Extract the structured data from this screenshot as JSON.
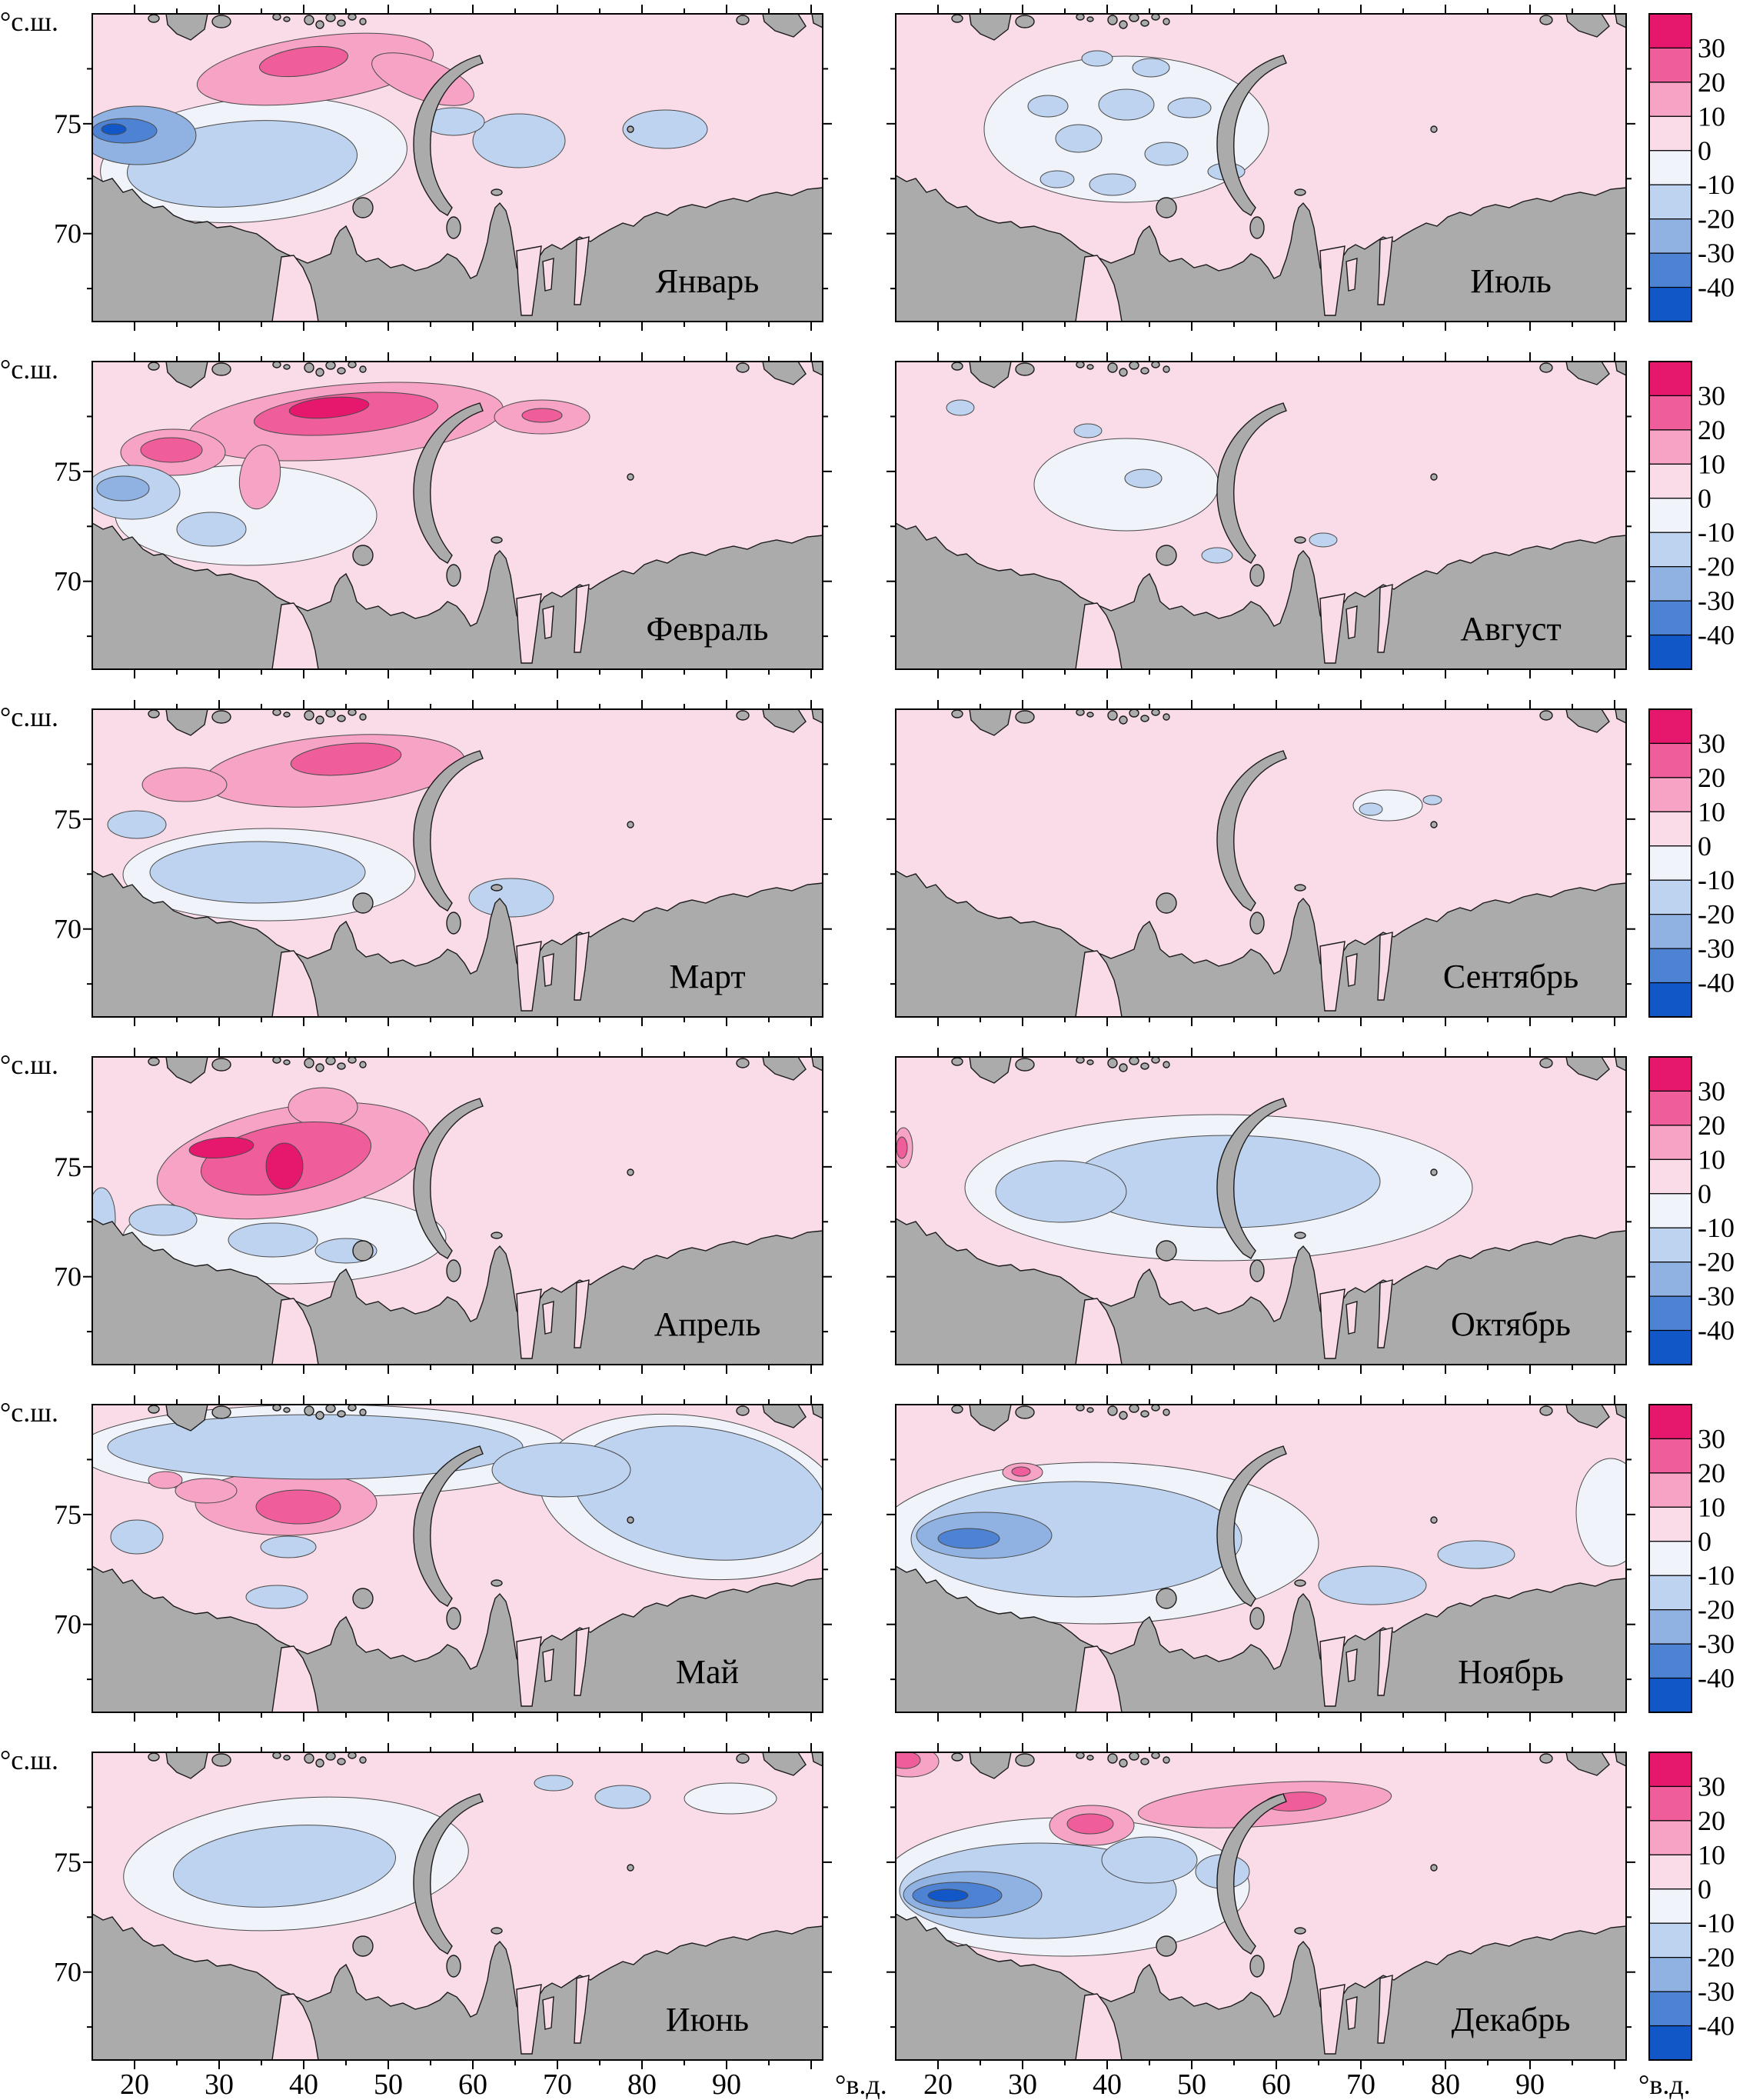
{
  "figure": {
    "lat_axis_label": "°с.ш.",
    "lon_axis_label": "°в.д.",
    "lat_tick_labels": [
      "75",
      "70"
    ],
    "lon_tick_labels": [
      "20",
      "30",
      "40",
      "50",
      "60",
      "70",
      "80",
      "90"
    ],
    "land_color": "#ababab",
    "coast_color": "#1a1a1a",
    "contour_line_color": "#4a4a4a"
  },
  "colorbar": {
    "labels": [
      "30",
      "20",
      "10",
      "0",
      "-10",
      "-20",
      "-30",
      "-40"
    ],
    "colors": [
      "#E5186E",
      "#EF5E9B",
      "#F6A3C6",
      "#FADCE8",
      "#F0F3FA",
      "#BED3EF",
      "#8FB2E2",
      "#4E82D3",
      "#1257C8"
    ]
  },
  "panels": [
    {
      "month": "Январь",
      "patches": [
        [
          210,
          190,
          200,
          80,
          -5,
          -1
        ],
        [
          195,
          195,
          150,
          55,
          -5,
          -2
        ],
        [
          555,
          165,
          60,
          35,
          0,
          -2
        ],
        [
          745,
          150,
          55,
          25,
          0,
          -2
        ],
        [
          470,
          140,
          40,
          18,
          0,
          -2
        ],
        [
          60,
          158,
          75,
          38,
          0,
          -3
        ],
        [
          42,
          152,
          42,
          16,
          0,
          -4
        ],
        [
          28,
          150,
          16,
          7,
          0,
          -5
        ],
        [
          290,
          72,
          155,
          42,
          -8,
          1
        ],
        [
          430,
          85,
          70,
          26,
          20,
          1
        ],
        [
          275,
          62,
          58,
          18,
          -8,
          2
        ]
      ]
    },
    {
      "month": "Февраль",
      "patches": [
        [
          200,
          200,
          170,
          65,
          0,
          -1
        ],
        [
          52,
          170,
          62,
          35,
          0,
          -2
        ],
        [
          155,
          218,
          45,
          22,
          0,
          -2
        ],
        [
          40,
          165,
          34,
          16,
          0,
          -3
        ],
        [
          330,
          78,
          205,
          48,
          -5,
          1
        ],
        [
          105,
          118,
          68,
          30,
          0,
          1
        ],
        [
          585,
          72,
          62,
          22,
          0,
          1
        ],
        [
          218,
          150,
          26,
          42,
          10,
          1
        ],
        [
          330,
          68,
          120,
          26,
          -5,
          2
        ],
        [
          103,
          115,
          40,
          16,
          0,
          2
        ],
        [
          585,
          70,
          26,
          9,
          0,
          2
        ],
        [
          308,
          60,
          52,
          13,
          -5,
          3
        ]
      ]
    },
    {
      "month": "Март",
      "patches": [
        [
          230,
          215,
          190,
          60,
          0,
          -1
        ],
        [
          215,
          212,
          140,
          40,
          0,
          -2
        ],
        [
          545,
          245,
          55,
          25,
          0,
          -2
        ],
        [
          58,
          150,
          38,
          18,
          0,
          -2
        ],
        [
          315,
          80,
          170,
          45,
          -5,
          1
        ],
        [
          120,
          98,
          55,
          22,
          0,
          1
        ],
        [
          330,
          65,
          72,
          20,
          -5,
          2
        ]
      ]
    },
    {
      "month": "Апрель",
      "patches": [
        [
          250,
          235,
          210,
          60,
          0,
          -1
        ],
        [
          235,
          238,
          58,
          22,
          0,
          -2
        ],
        [
          92,
          212,
          44,
          20,
          0,
          -2
        ],
        [
          330,
          252,
          40,
          16,
          0,
          -2
        ],
        [
          12,
          210,
          18,
          40,
          0,
          -2
        ],
        [
          262,
          135,
          180,
          70,
          -10,
          1
        ],
        [
          300,
          65,
          45,
          25,
          0,
          1
        ],
        [
          252,
          132,
          112,
          44,
          -10,
          2
        ],
        [
          168,
          118,
          42,
          13,
          -5,
          3
        ],
        [
          250,
          142,
          24,
          30,
          0,
          3
        ]
      ]
    },
    {
      "month": "Май",
      "patches": [
        [
          300,
          60,
          320,
          60,
          0,
          -1
        ],
        [
          780,
          120,
          200,
          105,
          8,
          -1
        ],
        [
          290,
          55,
          270,
          42,
          0,
          -2
        ],
        [
          790,
          115,
          165,
          85,
          8,
          -2
        ],
        [
          610,
          85,
          90,
          35,
          0,
          -2
        ],
        [
          255,
          185,
          36,
          14,
          0,
          -2
        ],
        [
          58,
          172,
          34,
          22,
          0,
          -2
        ],
        [
          240,
          250,
          40,
          15,
          0,
          -2
        ],
        [
          252,
          128,
          118,
          42,
          0,
          1
        ],
        [
          148,
          112,
          40,
          16,
          0,
          1
        ],
        [
          95,
          98,
          22,
          11,
          0,
          1
        ],
        [
          268,
          133,
          55,
          22,
          0,
          2
        ]
      ]
    },
    {
      "month": "Июнь",
      "patches": [
        [
          265,
          145,
          225,
          85,
          -5,
          -1
        ],
        [
          830,
          60,
          60,
          20,
          0,
          -1
        ],
        [
          250,
          148,
          145,
          52,
          -5,
          -2
        ],
        [
          690,
          58,
          36,
          15,
          0,
          -2
        ],
        [
          600,
          40,
          25,
          10,
          0,
          -2
        ]
      ]
    },
    {
      "month": "Июль",
      "patches": [
        [
          300,
          150,
          185,
          95,
          0,
          -1
        ],
        [
          300,
          118,
          36,
          20,
          0,
          -2
        ],
        [
          238,
          162,
          30,
          18,
          0,
          -2
        ],
        [
          352,
          182,
          28,
          15,
          0,
          -2
        ],
        [
          282,
          222,
          30,
          14,
          0,
          -2
        ],
        [
          198,
          120,
          26,
          14,
          0,
          -2
        ],
        [
          382,
          122,
          28,
          13,
          0,
          -2
        ],
        [
          332,
          70,
          24,
          12,
          0,
          -2
        ],
        [
          262,
          58,
          20,
          10,
          0,
          -2
        ],
        [
          430,
          205,
          24,
          11,
          0,
          -2
        ],
        [
          210,
          215,
          22,
          11,
          0,
          -2
        ]
      ]
    },
    {
      "month": "Август",
      "patches": [
        [
          300,
          160,
          120,
          60,
          0,
          -1
        ],
        [
          84,
          60,
          18,
          10,
          0,
          -2
        ],
        [
          322,
          152,
          24,
          12,
          0,
          -2
        ],
        [
          418,
          252,
          20,
          10,
          0,
          -2
        ],
        [
          556,
          232,
          18,
          9,
          0,
          -2
        ],
        [
          250,
          90,
          18,
          9,
          0,
          -2
        ]
      ]
    },
    {
      "month": "Сентябрь",
      "patches": [
        [
          640,
          125,
          45,
          20,
          0,
          -1
        ],
        [
          618,
          130,
          15,
          8,
          0,
          -2
        ],
        [
          698,
          118,
          12,
          6,
          0,
          -2
        ]
      ]
    },
    {
      "month": "Октябрь",
      "patches": [
        [
          420,
          170,
          330,
          95,
          0,
          -1
        ],
        [
          430,
          162,
          200,
          60,
          0,
          -2
        ],
        [
          215,
          175,
          85,
          40,
          0,
          -2
        ],
        [
          10,
          118,
          12,
          26,
          0,
          1
        ],
        [
          8,
          118,
          7,
          14,
          0,
          2
        ]
      ]
    },
    {
      "month": "Ноябрь",
      "patches": [
        [
          260,
          180,
          290,
          105,
          0,
          -1
        ],
        [
          930,
          140,
          45,
          70,
          0,
          -1
        ],
        [
          235,
          175,
          215,
          75,
          0,
          -2
        ],
        [
          620,
          235,
          70,
          25,
          0,
          -2
        ],
        [
          755,
          195,
          50,
          18,
          0,
          -2
        ],
        [
          115,
          170,
          88,
          30,
          0,
          -3
        ],
        [
          95,
          174,
          40,
          13,
          0,
          -4
        ],
        [
          165,
          88,
          26,
          12,
          0,
          1
        ],
        [
          163,
          87,
          12,
          6,
          0,
          2
        ]
      ]
    },
    {
      "month": "Декабрь",
      "patches": [
        [
          220,
          175,
          240,
          90,
          0,
          -1
        ],
        [
          185,
          180,
          180,
          62,
          0,
          -2
        ],
        [
          330,
          140,
          62,
          30,
          0,
          -2
        ],
        [
          425,
          155,
          35,
          22,
          0,
          -2
        ],
        [
          100,
          185,
          90,
          30,
          0,
          -3
        ],
        [
          80,
          186,
          58,
          17,
          0,
          -4
        ],
        [
          68,
          186,
          26,
          8,
          0,
          -5
        ],
        [
          480,
          68,
          165,
          28,
          -4,
          1
        ],
        [
          255,
          95,
          55,
          26,
          0,
          1
        ],
        [
          18,
          12,
          38,
          20,
          0,
          1
        ],
        [
          520,
          64,
          40,
          12,
          -4,
          2
        ],
        [
          253,
          93,
          30,
          13,
          0,
          2
        ],
        [
          12,
          10,
          20,
          11,
          0,
          2
        ]
      ]
    }
  ],
  "chart_data": {
    "type": "heatmap",
    "subtype": "filled-contour-anomaly-maps",
    "grid": {
      "rows": 6,
      "cols": 2,
      "order": "column-major"
    },
    "panel_months": [
      "Январь",
      "Февраль",
      "Март",
      "Апрель",
      "Май",
      "Июнь",
      "Июль",
      "Август",
      "Сентябрь",
      "Октябрь",
      "Ноябрь",
      "Декабрь"
    ],
    "x_axis": {
      "label": "°в.д.",
      "ticks": [
        20,
        30,
        40,
        50,
        60,
        70,
        80,
        90
      ]
    },
    "y_axis": {
      "label": "°с.ш.",
      "ticks": [
        75,
        70
      ]
    },
    "colorbar": {
      "boundary_labels": [
        30,
        20,
        10,
        0,
        -10,
        -20,
        -30,
        -40
      ],
      "position": "right",
      "per_row": true
    },
    "value_meaning": "anomaly level bands from above 30 (crimson) to below -40 (deep blue)"
  }
}
